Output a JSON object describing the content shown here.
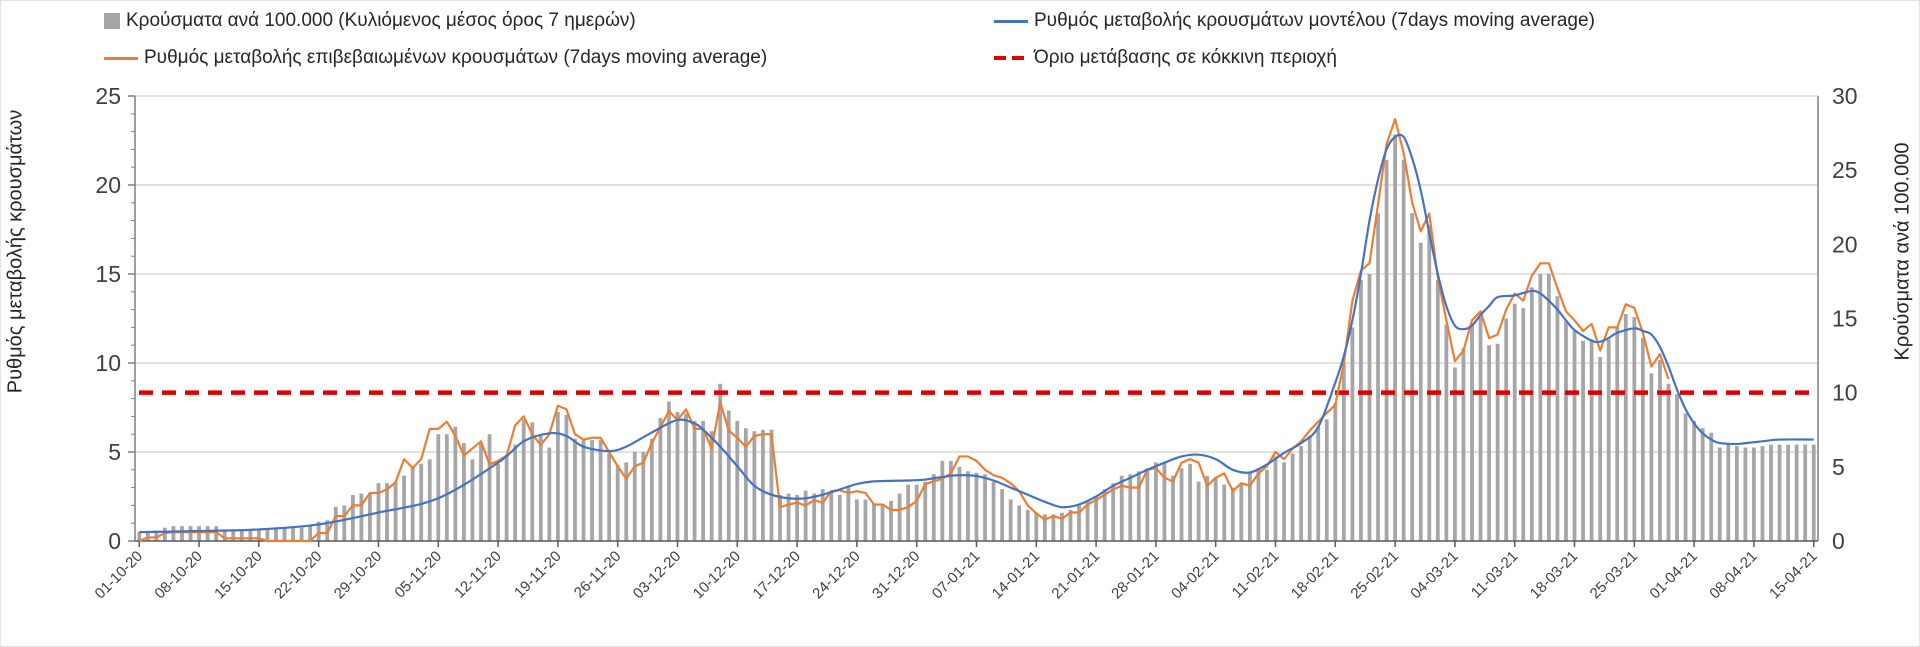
{
  "chart_data": {
    "type": "bar+line",
    "legend": {
      "bars": "Κρούσματα ανά 100.000 (Κυλιόμενος μέσος όρος 7 ημερών)",
      "model": "Ρυθμός μεταβολής κρουσμάτων μοντέλου (7days moving average)",
      "confirmed": "Ρυθμός μεταβολής επιβεβαιωμένων κρουσμάτων (7days moving average)",
      "threshold": "Όριο μετάβασης σε κόκκινη περιοχή"
    },
    "legend_position": "top",
    "ylabel_left": "Ρυθμός μεταβολής κρουσμάτων",
    "ylabel_right": "Κρούσματα ανά 100.000",
    "ylim_left": [
      0,
      25
    ],
    "ylim_right": [
      0,
      30
    ],
    "left_ticks": [
      "0",
      "5",
      "10",
      "15",
      "20",
      "25"
    ],
    "right_ticks": [
      "0",
      "5",
      "10",
      "15",
      "20",
      "25",
      "30"
    ],
    "grid": true,
    "start_date": "01-10-20",
    "x_tick_labels": [
      "01-10-20",
      "08-10-20",
      "15-10-20",
      "22-10-20",
      "29-10-20",
      "05-11-20",
      "12-11-20",
      "19-11-20",
      "26-11-20",
      "03-12-20",
      "10-12-20",
      "17-12-20",
      "24-12-20",
      "31-12-20",
      "07-01-21",
      "14-01-21",
      "21-01-21",
      "28-01-21",
      "04-02-21",
      "11-02-21",
      "18-02-21",
      "25-02-21",
      "04-03-21",
      "11-03-21",
      "18-03-21",
      "25-03-21",
      "01-04-21",
      "08-04-21",
      "15-04-21"
    ],
    "colors": {
      "bars": "#a6a6a6",
      "model": "#4472c4",
      "confirmed": "#ed7d31",
      "threshold": "#e00000",
      "grid": "#d9d9d9",
      "axis": "#7f7f7f"
    },
    "threshold_right_axis": 10,
    "cases_per_100k_daily": [
      0.6,
      0.6,
      0.7,
      0.9,
      1.0,
      1.0,
      1.0,
      1.0,
      1.0,
      1.0,
      0.7,
      0.7,
      0.7,
      0.7,
      0.8,
      0.8,
      0.8,
      0.9,
      0.9,
      0.9,
      1.0,
      1.3,
      1.4,
      2.3,
      2.4,
      3.1,
      3.2,
      3.2,
      3.9,
      3.9,
      4.0,
      4.4,
      5.0,
      5.2,
      5.5,
      7.2,
      7.2,
      7.7,
      6.6,
      5.5,
      6.6,
      7.2,
      5.2,
      5.8,
      6.5,
      8.2,
      8.0,
      7.1,
      6.3,
      8.7,
      8.5,
      6.9,
      6.8,
      6.8,
      6.8,
      5.9,
      5.1,
      5.3,
      6.0,
      6.0,
      6.9,
      8.3,
      9.4,
      8.7,
      8.6,
      8.1,
      8.1,
      7.4,
      10.6,
      8.8,
      8.1,
      7.6,
      7.4,
      7.5,
      7.5,
      3.1,
      3.2,
      3.1,
      3.4,
      3.2,
      3.5,
      3.4,
      3.1,
      3.7,
      2.8,
      2.8,
      2.5,
      2.5,
      2.7,
      3.2,
      3.8,
      3.8,
      4.0,
      4.5,
      5.4,
      5.4,
      5.0,
      4.7,
      4.6,
      4.5,
      4.0,
      3.5,
      2.8,
      2.4,
      2.1,
      1.9,
      1.8,
      1.8,
      1.9,
      2.1,
      2.4,
      2.7,
      3.0,
      3.5,
      3.9,
      4.4,
      4.5,
      4.7,
      4.9,
      5.3,
      5.3,
      4.4,
      4.9,
      5.2,
      4.0,
      4.4,
      4.3,
      3.8,
      3.6,
      3.9,
      4.6,
      4.9,
      4.8,
      5.7,
      5.3,
      5.9,
      6.4,
      7.1,
      7.7,
      8.2,
      9.3,
      12.0,
      14.4,
      17.6,
      18.0,
      22.1,
      25.7,
      27.4,
      25.7,
      22.1,
      20.1,
      21.3,
      17.6,
      14.6,
      11.7,
      13.0,
      14.6,
      15.1,
      13.2,
      13.3,
      15.0,
      16.0,
      15.7,
      17.1,
      18.0,
      18.0,
      16.5,
      14.8,
      14.2,
      13.5,
      13.6,
      12.4,
      13.6,
      14.4,
      15.3,
      15.1,
      13.7,
      11.3,
      12.2,
      10.6,
      9.9,
      8.6,
      8.1,
      7.6,
      7.3,
      6.3,
      6.5,
      6.4,
      6.3,
      6.3,
      6.4,
      6.5,
      6.5,
      6.5,
      6.5,
      6.5,
      6.5
    ],
    "confirmed_rate_daily": [
      0,
      0.2,
      0.2,
      0.45,
      0.5,
      0.5,
      0.5,
      0.5,
      0.5,
      0.5,
      0.15,
      0.15,
      0.15,
      0.15,
      0.15,
      0,
      0,
      0,
      0,
      0,
      0,
      0.45,
      0.45,
      1.4,
      1.4,
      2.0,
      2.0,
      2.7,
      2.7,
      2.9,
      3.3,
      4.6,
      4.1,
      4.6,
      6.3,
      6.3,
      6.7,
      5.9,
      4.8,
      5.2,
      5.6,
      4.3,
      4.5,
      4.8,
      6.5,
      7.0,
      6.0,
      5.4,
      6.0,
      7.6,
      7.4,
      6.0,
      5.7,
      5.8,
      5.8,
      5.0,
      4.2,
      3.5,
      4.2,
      4.4,
      5.5,
      6.4,
      7.3,
      6.8,
      7.4,
      6.3,
      6.3,
      5.2,
      7.8,
      6.2,
      5.8,
      5.3,
      5.9,
      6.0,
      6.0,
      1.9,
      2.05,
      2.15,
      2.0,
      2.3,
      2.15,
      2.8,
      2.85,
      2.7,
      2.8,
      2.7,
      2.05,
      2.05,
      1.75,
      1.75,
      1.9,
      2.25,
      3.2,
      3.35,
      3.5,
      3.8,
      4.75,
      4.75,
      4.5,
      4.0,
      3.7,
      3.55,
      3.25,
      2.8,
      2.0,
      1.55,
      1.2,
      1.4,
      1.25,
      1.6,
      1.6,
      2.05,
      2.3,
      2.6,
      2.9,
      3.1,
      3.0,
      3.0,
      4.0,
      4.1,
      3.55,
      3.35,
      4.4,
      4.6,
      4.4,
      3.1,
      3.55,
      3.8,
      2.8,
      3.25,
      3.1,
      3.8,
      4.2,
      5.0,
      4.6,
      5.2,
      5.6,
      6.2,
      6.7,
      7.2,
      7.65,
      10.0,
      13.5,
      15.2,
      15.6,
      18.9,
      22.3,
      23.7,
      21.8,
      19.0,
      17.4,
      18.4,
      14.8,
      12.4,
      10.1,
      10.7,
      12.4,
      12.9,
      11.4,
      11.6,
      13.0,
      13.9,
      13.5,
      14.9,
      15.6,
      15.6,
      14.2,
      12.9,
      12.4,
      11.8,
      12.2,
      10.7,
      12.0,
      12.0,
      13.3,
      13.1,
      11.7,
      9.8,
      10.5,
      9.1
    ],
    "model_rate": {
      "day": [
        0,
        7,
        14,
        21,
        28,
        35,
        42,
        45,
        48,
        50,
        52,
        55,
        57,
        60,
        63,
        65,
        66,
        68,
        70,
        72,
        74,
        76,
        78,
        80,
        82,
        84,
        86,
        90,
        92,
        94,
        96,
        98,
        100,
        102,
        104,
        106,
        108,
        110,
        112,
        114,
        116,
        118,
        120,
        122,
        124,
        126,
        128,
        130,
        132,
        134,
        136,
        138,
        140,
        141,
        142,
        143,
        144,
        145,
        146,
        147,
        148,
        149,
        150,
        151,
        152,
        153,
        154,
        155,
        156,
        157,
        158,
        159,
        161,
        163,
        164,
        165,
        166,
        167,
        168,
        170,
        171,
        172,
        173,
        175,
        176,
        177,
        178,
        179,
        180,
        181,
        182,
        183,
        184,
        185,
        187,
        188,
        190,
        192,
        196
      ],
      "value": [
        0.5,
        0.56,
        0.65,
        0.93,
        1.6,
        2.4,
        4.4,
        5.6,
        6.05,
        5.9,
        5.3,
        5.05,
        5.3,
        6.1,
        6.8,
        6.6,
        6.25,
        5.3,
        4.2,
        3.1,
        2.6,
        2.4,
        2.4,
        2.6,
        2.9,
        3.2,
        3.35,
        3.4,
        3.45,
        3.6,
        3.7,
        3.65,
        3.4,
        3.0,
        2.6,
        2.2,
        1.9,
        2.05,
        2.5,
        3.1,
        3.55,
        4.0,
        4.4,
        4.75,
        4.85,
        4.6,
        4.0,
        3.85,
        4.3,
        4.95,
        5.5,
        6.4,
        8.9,
        10.4,
        12.4,
        15.0,
        18.0,
        20.3,
        22.0,
        22.7,
        22.7,
        21.5,
        19.7,
        17.3,
        15.0,
        13.2,
        12.1,
        11.9,
        12.1,
        12.7,
        13.2,
        13.7,
        13.8,
        14.05,
        13.9,
        13.5,
        13.0,
        12.4,
        11.85,
        11.25,
        11.2,
        11.4,
        11.7,
        11.95,
        11.8,
        11.6,
        10.9,
        9.8,
        8.5,
        7.4,
        6.6,
        6.05,
        5.7,
        5.5,
        5.45,
        5.5,
        5.6,
        5.7,
        5.7
      ]
    }
  }
}
